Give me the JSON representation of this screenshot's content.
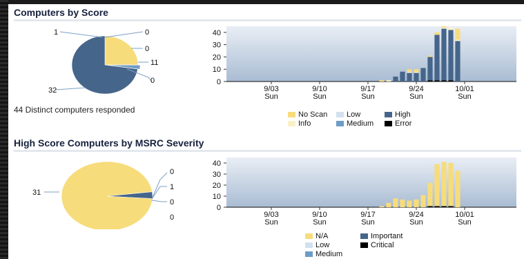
{
  "section1": {
    "title": "Computers by Score",
    "note": "44 Distinct computers responded",
    "pie_labels": [
      "1",
      "0",
      "0",
      "11",
      "0",
      "32"
    ],
    "legend": [
      {
        "label": "No Scan",
        "color": "#f7dc7c"
      },
      {
        "label": "Info",
        "color": "#fbf1c8"
      },
      {
        "label": "Low",
        "color": "#d3e1ee"
      },
      {
        "label": "Medium",
        "color": "#6f9cc7"
      },
      {
        "label": "High",
        "color": "#46658a"
      },
      {
        "label": "Error",
        "color": "#000000"
      }
    ]
  },
  "section2": {
    "title": "High Score Computers by MSRC Severity",
    "pie_labels": [
      "0",
      "1",
      "0",
      "0",
      "31"
    ],
    "legend": [
      {
        "label": "N/A",
        "color": "#f7dc7c"
      },
      {
        "label": "Low",
        "color": "#d3e1ee"
      },
      {
        "label": "Medium",
        "color": "#6f9cc7"
      },
      {
        "label": "Important",
        "color": "#46658a"
      },
      {
        "label": "Critical",
        "color": "#000000"
      }
    ]
  },
  "axis": {
    "y_ticks": [
      "40",
      "30",
      "20",
      "10",
      "0"
    ],
    "x_ticks": [
      {
        "date": "9/03",
        "day": "Sun"
      },
      {
        "date": "9/10",
        "day": "Sun"
      },
      {
        "date": "9/17",
        "day": "Sun"
      },
      {
        "date": "9/24",
        "day": "Sun"
      },
      {
        "date": "10/01",
        "day": "Sun"
      }
    ]
  },
  "chart_data": [
    {
      "type": "pie",
      "categories": [
        "No Scan",
        "Medium",
        "High"
      ],
      "values": [
        11,
        1,
        32
      ]
    },
    {
      "type": "bar",
      "x": [
        "9/19",
        "9/20",
        "9/21",
        "9/22",
        "9/23",
        "9/24",
        "9/25",
        "9/26",
        "9/27",
        "9/28",
        "9/29",
        "9/30"
      ],
      "series": [
        {
          "name": "Error",
          "values": [
            0,
            0,
            0,
            0,
            0,
            0,
            0,
            1,
            1,
            1,
            1,
            0
          ]
        },
        {
          "name": "High",
          "values": [
            0,
            0,
            4,
            8,
            7,
            7,
            11,
            19,
            37,
            42,
            41,
            33
          ]
        },
        {
          "name": "Info",
          "values": [
            0,
            1,
            0,
            0,
            1,
            1,
            0,
            0,
            0,
            1,
            2,
            1
          ]
        },
        {
          "name": "No Scan",
          "values": [
            1,
            0,
            0,
            0,
            2,
            2,
            0,
            1,
            2,
            1,
            0,
            9
          ]
        }
      ],
      "ylim": [
        0,
        45
      ]
    },
    {
      "type": "pie",
      "categories": [
        "N/A",
        "Important"
      ],
      "values": [
        31,
        1
      ]
    },
    {
      "type": "bar",
      "x": [
        "9/19",
        "9/20",
        "9/21",
        "9/22",
        "9/23",
        "9/24",
        "9/25",
        "9/26",
        "9/27",
        "9/28",
        "9/29",
        "9/30"
      ],
      "series": [
        {
          "name": "Critical",
          "values": [
            0,
            0,
            0,
            0,
            0,
            0,
            0,
            1,
            1,
            1,
            1,
            0
          ]
        },
        {
          "name": "N/A",
          "values": [
            1,
            4,
            8,
            7,
            6,
            7,
            11,
            21,
            38,
            40,
            39,
            33
          ]
        }
      ],
      "ylim": [
        0,
        45
      ]
    }
  ]
}
